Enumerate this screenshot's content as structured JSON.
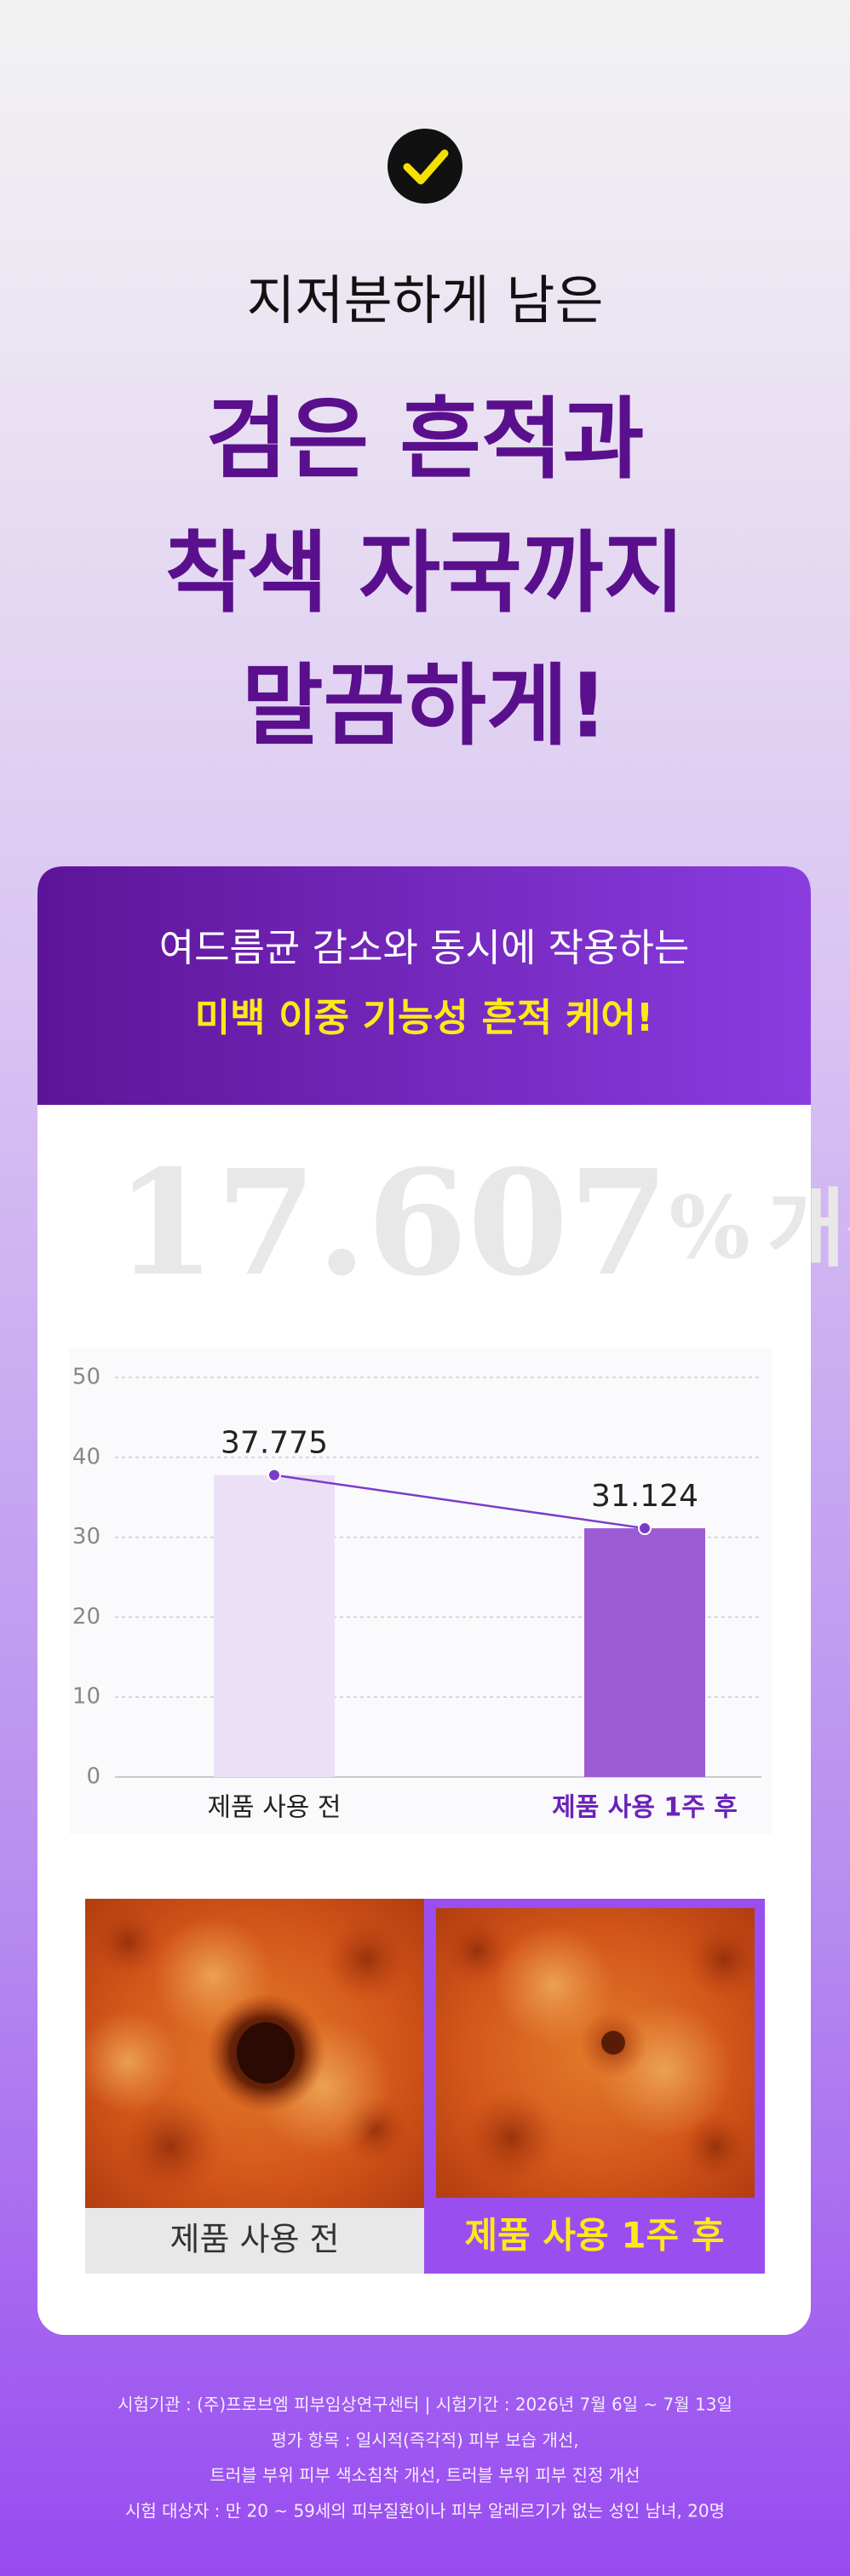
{
  "header": {
    "subtitle": "지저분하게 남은",
    "title_lines": [
      "검은 흔적과",
      "착색 자국까지",
      "말끔하게!"
    ]
  },
  "card": {
    "headline": "여드름균 감소와 동시에 작용하는",
    "highlight": "미백 이중 기능성 흔적 케어!",
    "improvement": {
      "number": "17.607",
      "unit": "%",
      "word": "개선"
    }
  },
  "chart_data": {
    "type": "bar",
    "categories": [
      "제품 사용 전",
      "제품 사용 1주 후"
    ],
    "values": [
      37.775,
      31.124
    ],
    "colors": [
      "#ece0f7",
      "#9a5bd3"
    ],
    "line_color": "#7a3cc8",
    "ylim": [
      0,
      50
    ],
    "yticks": [
      0,
      10,
      20,
      30,
      40,
      50
    ],
    "grid": true
  },
  "photos": {
    "before": "제품 사용 전",
    "after": "제품 사용 1주 후"
  },
  "footer": [
    "시험기관 : (주)프로브엠 피부임상연구센터  |  시험기간 : 2026년 7월 6일 ~ 7월 13일",
    "평가 항목 : 일시적(즉각적) 피부 보습 개선,",
    "트러블 부위 피부 색소침착 개선, 트러블 부위 피부 진정 개선",
    "시험 대상자 : 만 20 ~ 59세의 피부질환이나 피부 알레르기가 없는 성인 남녀, 20명"
  ]
}
